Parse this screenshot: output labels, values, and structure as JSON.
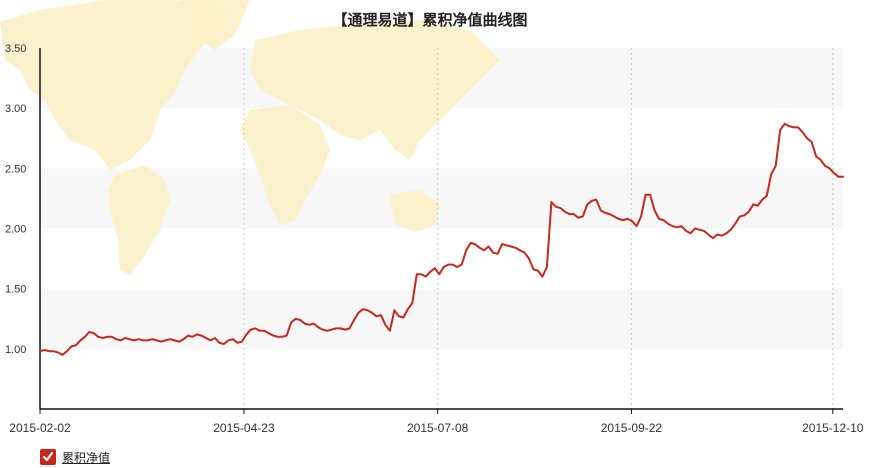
{
  "colors": {
    "line": "#c9271c",
    "band": "#f7f7f7",
    "map": "#fbf0c8",
    "axis": "#111111",
    "grid": "#cccccc"
  },
  "legend": {
    "icon": "checkbox-checked-icon",
    "label": "累积净值"
  },
  "chart_data": {
    "type": "line",
    "title": "【通理易道】累积净值曲线图",
    "xlabel": "",
    "ylabel": "",
    "ylim": [
      0.5,
      3.5
    ],
    "yticks": [
      "1.00",
      "1.50",
      "2.00",
      "2.50",
      "3.00",
      "3.50"
    ],
    "xticks": [
      "2015-02-02",
      "2015-04-23",
      "2015-07-08",
      "2015-09-22",
      "2015-12-10"
    ],
    "grid": "vertical dotted at x ticks, alternating horizontal bands",
    "legend_position": "bottom-left",
    "series": [
      {
        "name": "累积净值",
        "x_start": "2015-02-02",
        "x_end": "2015-12-14",
        "values": [
          0.98,
          0.99,
          0.98,
          0.98,
          0.97,
          0.95,
          0.98,
          1.02,
          1.03,
          1.07,
          1.1,
          1.14,
          1.13,
          1.1,
          1.09,
          1.1,
          1.1,
          1.08,
          1.07,
          1.09,
          1.08,
          1.07,
          1.08,
          1.07,
          1.07,
          1.08,
          1.07,
          1.06,
          1.07,
          1.08,
          1.07,
          1.06,
          1.08,
          1.11,
          1.1,
          1.12,
          1.11,
          1.09,
          1.07,
          1.09,
          1.05,
          1.04,
          1.07,
          1.08,
          1.05,
          1.06,
          1.12,
          1.16,
          1.17,
          1.15,
          1.15,
          1.13,
          1.11,
          1.1,
          1.1,
          1.11,
          1.22,
          1.25,
          1.24,
          1.21,
          1.2,
          1.21,
          1.18,
          1.16,
          1.15,
          1.16,
          1.17,
          1.17,
          1.16,
          1.17,
          1.24,
          1.3,
          1.33,
          1.32,
          1.3,
          1.27,
          1.28,
          1.2,
          1.15,
          1.32,
          1.27,
          1.26,
          1.33,
          1.38,
          1.62,
          1.62,
          1.6,
          1.64,
          1.67,
          1.62,
          1.68,
          1.7,
          1.7,
          1.68,
          1.7,
          1.82,
          1.88,
          1.87,
          1.84,
          1.82,
          1.85,
          1.8,
          1.79,
          1.87,
          1.86,
          1.85,
          1.84,
          1.82,
          1.8,
          1.75,
          1.66,
          1.65,
          1.6,
          1.68,
          2.22,
          2.18,
          2.17,
          2.14,
          2.12,
          2.12,
          2.09,
          2.1,
          2.2,
          2.23,
          2.24,
          2.15,
          2.13,
          2.12,
          2.1,
          2.08,
          2.07,
          2.08,
          2.06,
          2.02,
          2.1,
          2.28,
          2.28,
          2.15,
          2.08,
          2.07,
          2.04,
          2.02,
          2.01,
          2.02,
          1.98,
          1.96,
          2.0,
          1.99,
          1.98,
          1.95,
          1.92,
          1.95,
          1.94,
          1.96,
          1.99,
          2.04,
          2.1,
          2.11,
          2.14,
          2.2,
          2.19,
          2.24,
          2.27,
          2.45,
          2.52,
          2.82,
          2.87,
          2.85,
          2.84,
          2.84,
          2.8,
          2.75,
          2.72,
          2.6,
          2.57,
          2.52,
          2.5,
          2.46,
          2.43,
          2.43
        ]
      }
    ]
  }
}
